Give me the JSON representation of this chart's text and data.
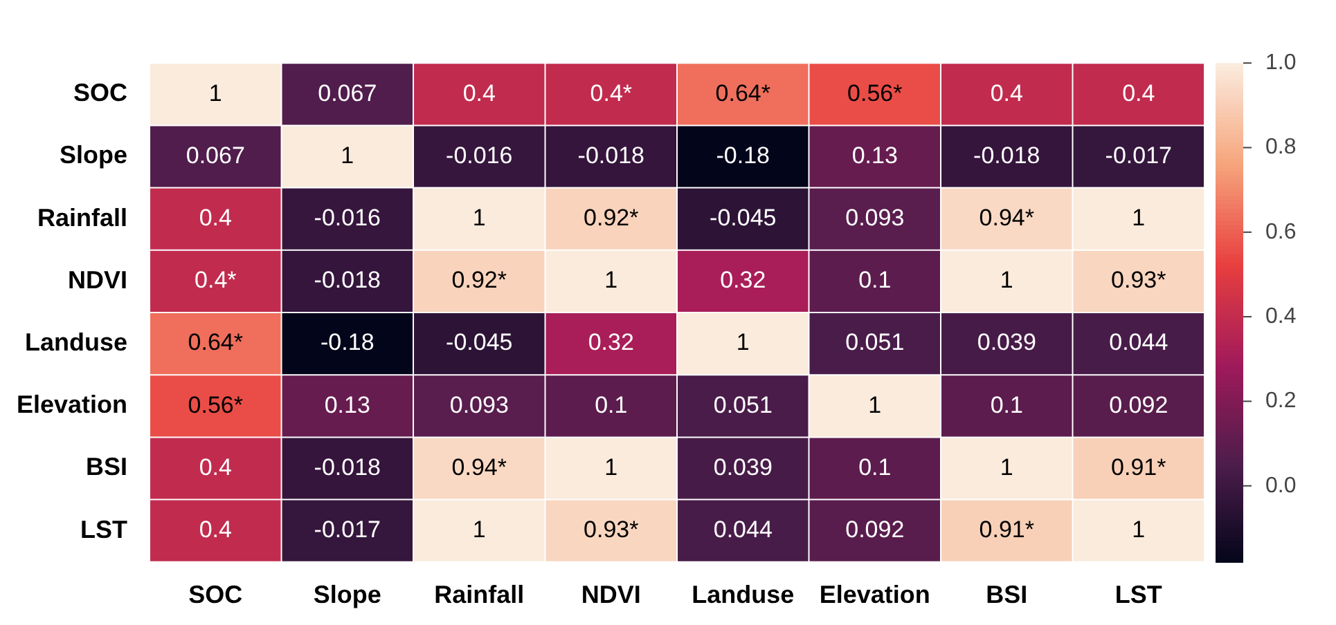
{
  "chart_data": {
    "type": "heatmap",
    "categories": [
      "SOC",
      "Slope",
      "Rainfall",
      "NDVI",
      "Landuse",
      "Elevation",
      "BSI",
      "LST"
    ],
    "y_categories": [
      "SOC",
      "Slope",
      "Rainfall",
      "NDVI",
      "Landuse",
      "Elevation",
      "BSI",
      "LST"
    ],
    "cells": [
      [
        1,
        0.067,
        0.4,
        0.4,
        0.64,
        0.56,
        0.4,
        0.4
      ],
      [
        0.067,
        1,
        -0.016,
        -0.018,
        -0.18,
        0.13,
        -0.018,
        -0.017
      ],
      [
        0.4,
        -0.016,
        1,
        0.92,
        -0.045,
        0.093,
        0.94,
        1
      ],
      [
        0.4,
        -0.018,
        0.92,
        1,
        0.32,
        0.1,
        1,
        0.93
      ],
      [
        0.64,
        -0.18,
        -0.045,
        0.32,
        1,
        0.051,
        0.039,
        0.044
      ],
      [
        0.56,
        0.13,
        0.093,
        0.1,
        0.051,
        1,
        0.1,
        0.092
      ],
      [
        0.4,
        -0.018,
        0.94,
        1,
        0.039,
        0.1,
        1,
        0.91
      ],
      [
        0.4,
        -0.017,
        1,
        0.93,
        0.044,
        0.092,
        0.91,
        1
      ]
    ],
    "cell_labels": [
      [
        "1",
        "0.067",
        "0.4",
        "0.4*",
        "0.64*",
        "0.56*",
        "0.4",
        "0.4"
      ],
      [
        "0.067",
        "1",
        "-0.016",
        "-0.018",
        "-0.18",
        "0.13",
        "-0.018",
        "-0.017"
      ],
      [
        "0.4",
        "-0.016",
        "1",
        "0.92*",
        "-0.045",
        "0.093",
        "0.94*",
        "1"
      ],
      [
        "0.4*",
        "-0.018",
        "0.92*",
        "1",
        "0.32",
        "0.1",
        "1",
        "0.93*"
      ],
      [
        "0.64*",
        "-0.18",
        "-0.045",
        "0.32",
        "1",
        "0.051",
        "0.039",
        "0.044"
      ],
      [
        "0.56*",
        "0.13",
        "0.093",
        "0.1",
        "0.051",
        "1",
        "0.1",
        "0.092"
      ],
      [
        "0.4",
        "-0.018",
        "0.94*",
        "1",
        "0.039",
        "0.1",
        "1",
        "0.91*"
      ],
      [
        "0.4",
        "-0.017",
        "1",
        "0.93*",
        "0.044",
        "0.092",
        "0.91*",
        "1"
      ]
    ],
    "clim": [
      -0.18,
      1
    ],
    "cticks": [
      {
        "value": 1,
        "label": "1.0"
      },
      {
        "value": 0.8,
        "label": "0.8"
      },
      {
        "value": 0.6,
        "label": "0.6"
      },
      {
        "value": 0.4,
        "label": "0.4"
      },
      {
        "value": 0.2,
        "label": "0.2"
      },
      {
        "value": 0,
        "label": "0.0"
      }
    ]
  }
}
